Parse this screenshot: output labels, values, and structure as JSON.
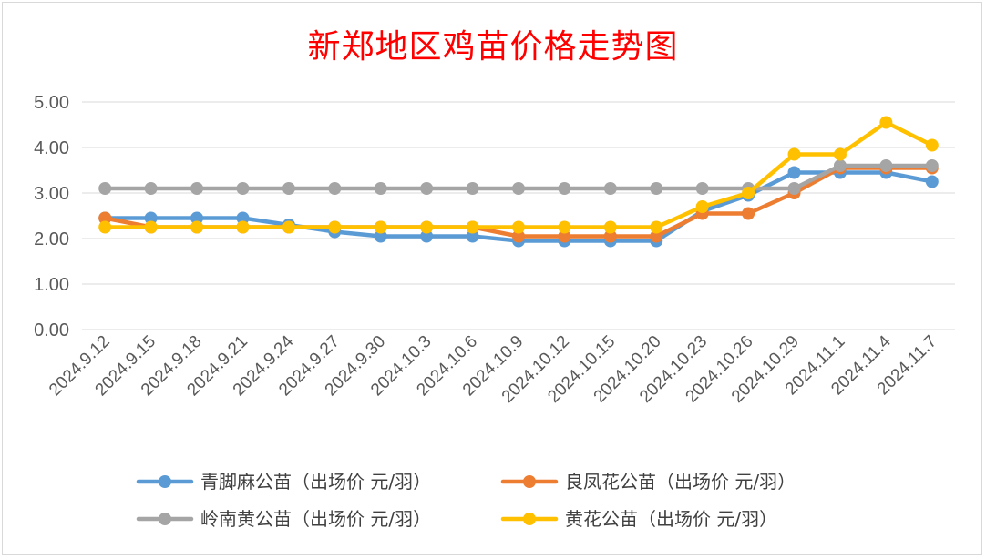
{
  "chart_data": {
    "type": "line",
    "title": "新郑地区鸡苗价格走势图",
    "xlabel": "",
    "ylabel": "",
    "ylim": [
      0,
      5
    ],
    "yticks": [
      "0.00",
      "1.00",
      "2.00",
      "3.00",
      "4.00",
      "5.00"
    ],
    "grid": "horizontal",
    "legend_position": "bottom",
    "categories": [
      "2024.9.12",
      "2024.9.15",
      "2024.9.18",
      "2024.9.21",
      "2024.9.24",
      "2024.9.27",
      "2024.9.30",
      "2024.10.3",
      "2024.10.6",
      "2024.10.9",
      "2024.10.12",
      "2024.10.15",
      "2024.10.20",
      "2024.10.23",
      "2024.10.26",
      "2024.10.29",
      "2024.11.1",
      "2024.11.4",
      "2024.11.7"
    ],
    "series": [
      {
        "name": "青脚麻公苗（出场价 元/羽）",
        "color": "#5b9bd5",
        "values": [
          2.45,
          2.45,
          2.45,
          2.45,
          2.3,
          2.15,
          2.05,
          2.05,
          2.05,
          1.95,
          1.95,
          1.95,
          1.95,
          2.6,
          2.95,
          3.45,
          3.45,
          3.45,
          3.25
        ]
      },
      {
        "name": "良凤花公苗（出场价 元/羽）",
        "color": "#ed7d31",
        "values": [
          2.45,
          2.25,
          2.25,
          2.25,
          2.25,
          2.25,
          2.25,
          2.25,
          2.25,
          2.05,
          2.05,
          2.05,
          2.05,
          2.55,
          2.55,
          3.0,
          3.55,
          3.55,
          3.55
        ]
      },
      {
        "name": "岭南黄公苗（出场价 元/羽）",
        "color": "#a5a5a5",
        "values": [
          3.1,
          3.1,
          3.1,
          3.1,
          3.1,
          3.1,
          3.1,
          3.1,
          3.1,
          3.1,
          3.1,
          3.1,
          3.1,
          3.1,
          3.1,
          3.1,
          3.6,
          3.6,
          3.6
        ]
      },
      {
        "name": "黄花公苗（出场价 元/羽）",
        "color": "#ffc000",
        "values": [
          2.25,
          2.25,
          2.25,
          2.25,
          2.25,
          2.25,
          2.25,
          2.25,
          2.25,
          2.25,
          2.25,
          2.25,
          2.25,
          2.7,
          3.0,
          3.85,
          3.85,
          4.55,
          4.05
        ]
      }
    ]
  }
}
